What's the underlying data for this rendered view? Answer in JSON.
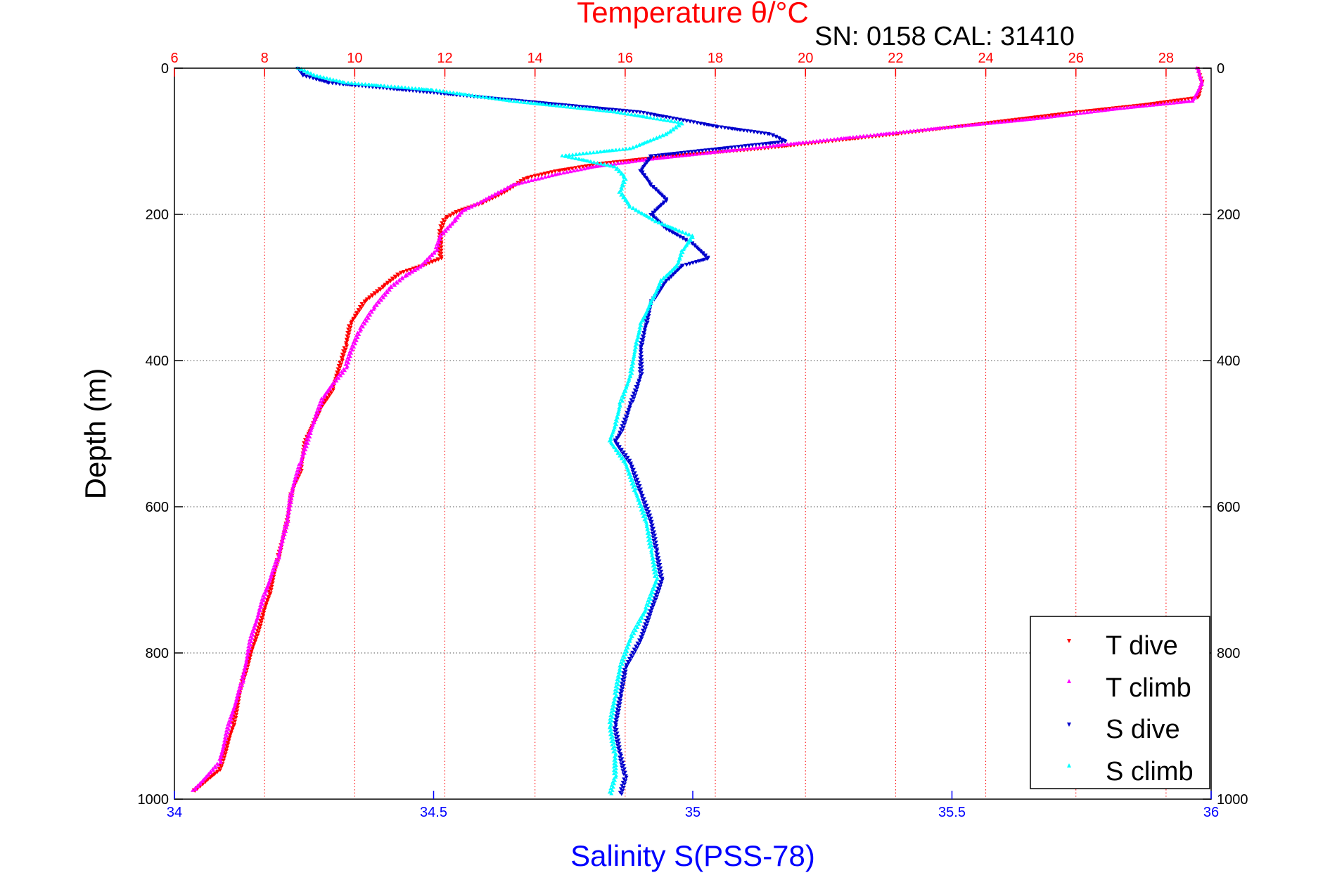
{
  "colors": {
    "temperature_axis": "#ff0000",
    "salinity_axis": "#0000ff",
    "t_dive": "#ff0000",
    "t_climb": "#ff00ff",
    "s_dive": "#0000cc",
    "s_climb": "#00ffff"
  },
  "chart_data": {
    "type": "scatter",
    "title": "Temperature θ/°C",
    "subtitle": "SN: 0158  CAL: 31410",
    "ylabel": "Depth (m)",
    "xlabel": "Salinity S(PSS-78)",
    "y_axis": {
      "lim": [
        0,
        1000
      ],
      "reversed": true,
      "ticks": [
        0,
        200,
        400,
        600,
        800,
        1000
      ],
      "tick_labels": [
        "0",
        "200",
        "400",
        "600",
        "800",
        "1000"
      ]
    },
    "top_axis": {
      "label": "Temperature θ/°C",
      "lim": [
        6,
        29
      ],
      "ticks": [
        6,
        8,
        10,
        12,
        14,
        16,
        18,
        20,
        22,
        24,
        26,
        28
      ],
      "tick_labels": [
        "6",
        "8",
        "10",
        "12",
        "14",
        "16",
        "18",
        "20",
        "22",
        "24",
        "26",
        "28"
      ]
    },
    "bottom_axis": {
      "label": "Salinity S(PSS-78)",
      "lim": [
        34,
        36
      ],
      "ticks": [
        34,
        34.5,
        35,
        35.5,
        36
      ],
      "tick_labels": [
        "34",
        "34.5",
        "35",
        "35.5",
        "36"
      ]
    },
    "grid": true,
    "legend": {
      "position": "bottom-right",
      "entries": [
        "T dive",
        "T climb",
        "S dive",
        "S climb"
      ]
    },
    "series": [
      {
        "name": "T dive",
        "axis": "temperature",
        "marker": "triangle-down",
        "points": [
          [
            28.7,
            0
          ],
          [
            28.8,
            20
          ],
          [
            28.7,
            40
          ],
          [
            27.5,
            50
          ],
          [
            26.0,
            60
          ],
          [
            24.0,
            75
          ],
          [
            22.0,
            90
          ],
          [
            20.5,
            100
          ],
          [
            19.0,
            110
          ],
          [
            17.0,
            120
          ],
          [
            15.5,
            130
          ],
          [
            14.5,
            140
          ],
          [
            13.8,
            150
          ],
          [
            13.3,
            170
          ],
          [
            12.8,
            185
          ],
          [
            12.3,
            195
          ],
          [
            12.0,
            205
          ],
          [
            11.9,
            220
          ],
          [
            11.9,
            240
          ],
          [
            11.9,
            260
          ],
          [
            11.5,
            270
          ],
          [
            11.0,
            280
          ],
          [
            10.6,
            300
          ],
          [
            10.2,
            320
          ],
          [
            9.9,
            350
          ],
          [
            9.8,
            380
          ],
          [
            9.7,
            400
          ],
          [
            9.5,
            440
          ],
          [
            9.2,
            470
          ],
          [
            8.9,
            510
          ],
          [
            8.8,
            550
          ],
          [
            8.6,
            580
          ],
          [
            8.5,
            620
          ],
          [
            8.3,
            670
          ],
          [
            8.1,
            720
          ],
          [
            7.8,
            780
          ],
          [
            7.5,
            840
          ],
          [
            7.3,
            900
          ],
          [
            7.0,
            960
          ],
          [
            6.4,
            990
          ]
        ]
      },
      {
        "name": "T climb",
        "axis": "temperature",
        "marker": "triangle-up",
        "points": [
          [
            28.7,
            0
          ],
          [
            28.8,
            20
          ],
          [
            28.6,
            45
          ],
          [
            27.0,
            55
          ],
          [
            25.0,
            70
          ],
          [
            23.0,
            82
          ],
          [
            21.0,
            95
          ],
          [
            19.5,
            105
          ],
          [
            18.0,
            115
          ],
          [
            16.5,
            125
          ],
          [
            15.3,
            135
          ],
          [
            14.5,
            145
          ],
          [
            13.5,
            160
          ],
          [
            12.9,
            180
          ],
          [
            12.4,
            195
          ],
          [
            12.2,
            210
          ],
          [
            11.9,
            230
          ],
          [
            11.8,
            250
          ],
          [
            11.5,
            270
          ],
          [
            11.1,
            285
          ],
          [
            10.8,
            300
          ],
          [
            10.4,
            330
          ],
          [
            10.1,
            360
          ],
          [
            9.9,
            390
          ],
          [
            9.8,
            410
          ],
          [
            9.3,
            450
          ],
          [
            9.0,
            500
          ],
          [
            8.8,
            540
          ],
          [
            8.6,
            580
          ],
          [
            8.5,
            620
          ],
          [
            8.3,
            670
          ],
          [
            8.0,
            720
          ],
          [
            7.7,
            780
          ],
          [
            7.5,
            840
          ],
          [
            7.2,
            900
          ],
          [
            7.0,
            950
          ],
          [
            6.4,
            990
          ]
        ]
      },
      {
        "name": "S dive",
        "axis": "salinity",
        "marker": "triangle-down",
        "points": [
          [
            34.24,
            0
          ],
          [
            34.25,
            10
          ],
          [
            34.3,
            20
          ],
          [
            34.9,
            60
          ],
          [
            35.05,
            80
          ],
          [
            35.15,
            90
          ],
          [
            35.18,
            100
          ],
          [
            34.92,
            120
          ],
          [
            34.9,
            140
          ],
          [
            34.92,
            160
          ],
          [
            34.95,
            180
          ],
          [
            34.92,
            200
          ],
          [
            34.95,
            220
          ],
          [
            35.0,
            240
          ],
          [
            35.03,
            260
          ],
          [
            34.98,
            270
          ],
          [
            34.95,
            290
          ],
          [
            34.92,
            320
          ],
          [
            34.91,
            350
          ],
          [
            34.9,
            380
          ],
          [
            34.9,
            420
          ],
          [
            34.88,
            460
          ],
          [
            34.86,
            500
          ],
          [
            34.85,
            510
          ],
          [
            34.88,
            540
          ],
          [
            34.9,
            580
          ],
          [
            34.92,
            620
          ],
          [
            34.93,
            660
          ],
          [
            34.94,
            700
          ],
          [
            34.92,
            740
          ],
          [
            34.9,
            780
          ],
          [
            34.87,
            820
          ],
          [
            34.86,
            860
          ],
          [
            34.85,
            900
          ],
          [
            34.86,
            940
          ],
          [
            34.87,
            970
          ],
          [
            34.86,
            995
          ]
        ]
      },
      {
        "name": "S climb",
        "axis": "salinity",
        "marker": "triangle-up",
        "points": [
          [
            34.24,
            0
          ],
          [
            34.27,
            10
          ],
          [
            34.33,
            20
          ],
          [
            34.5,
            30
          ],
          [
            34.65,
            45
          ],
          [
            34.85,
            60
          ],
          [
            34.98,
            75
          ],
          [
            34.95,
            90
          ],
          [
            34.88,
            110
          ],
          [
            34.75,
            120
          ],
          [
            34.85,
            135
          ],
          [
            34.87,
            150
          ],
          [
            34.86,
            170
          ],
          [
            34.88,
            190
          ],
          [
            34.93,
            210
          ],
          [
            35.0,
            230
          ],
          [
            34.98,
            250
          ],
          [
            34.97,
            270
          ],
          [
            34.94,
            290
          ],
          [
            34.92,
            320
          ],
          [
            34.9,
            350
          ],
          [
            34.89,
            380
          ],
          [
            34.88,
            420
          ],
          [
            34.86,
            460
          ],
          [
            34.85,
            490
          ],
          [
            34.84,
            510
          ],
          [
            34.87,
            540
          ],
          [
            34.89,
            580
          ],
          [
            34.91,
            620
          ],
          [
            34.92,
            660
          ],
          [
            34.93,
            700
          ],
          [
            34.91,
            740
          ],
          [
            34.88,
            780
          ],
          [
            34.86,
            820
          ],
          [
            34.85,
            860
          ],
          [
            34.84,
            900
          ],
          [
            34.85,
            940
          ],
          [
            34.85,
            970
          ],
          [
            34.84,
            995
          ]
        ]
      }
    ]
  }
}
